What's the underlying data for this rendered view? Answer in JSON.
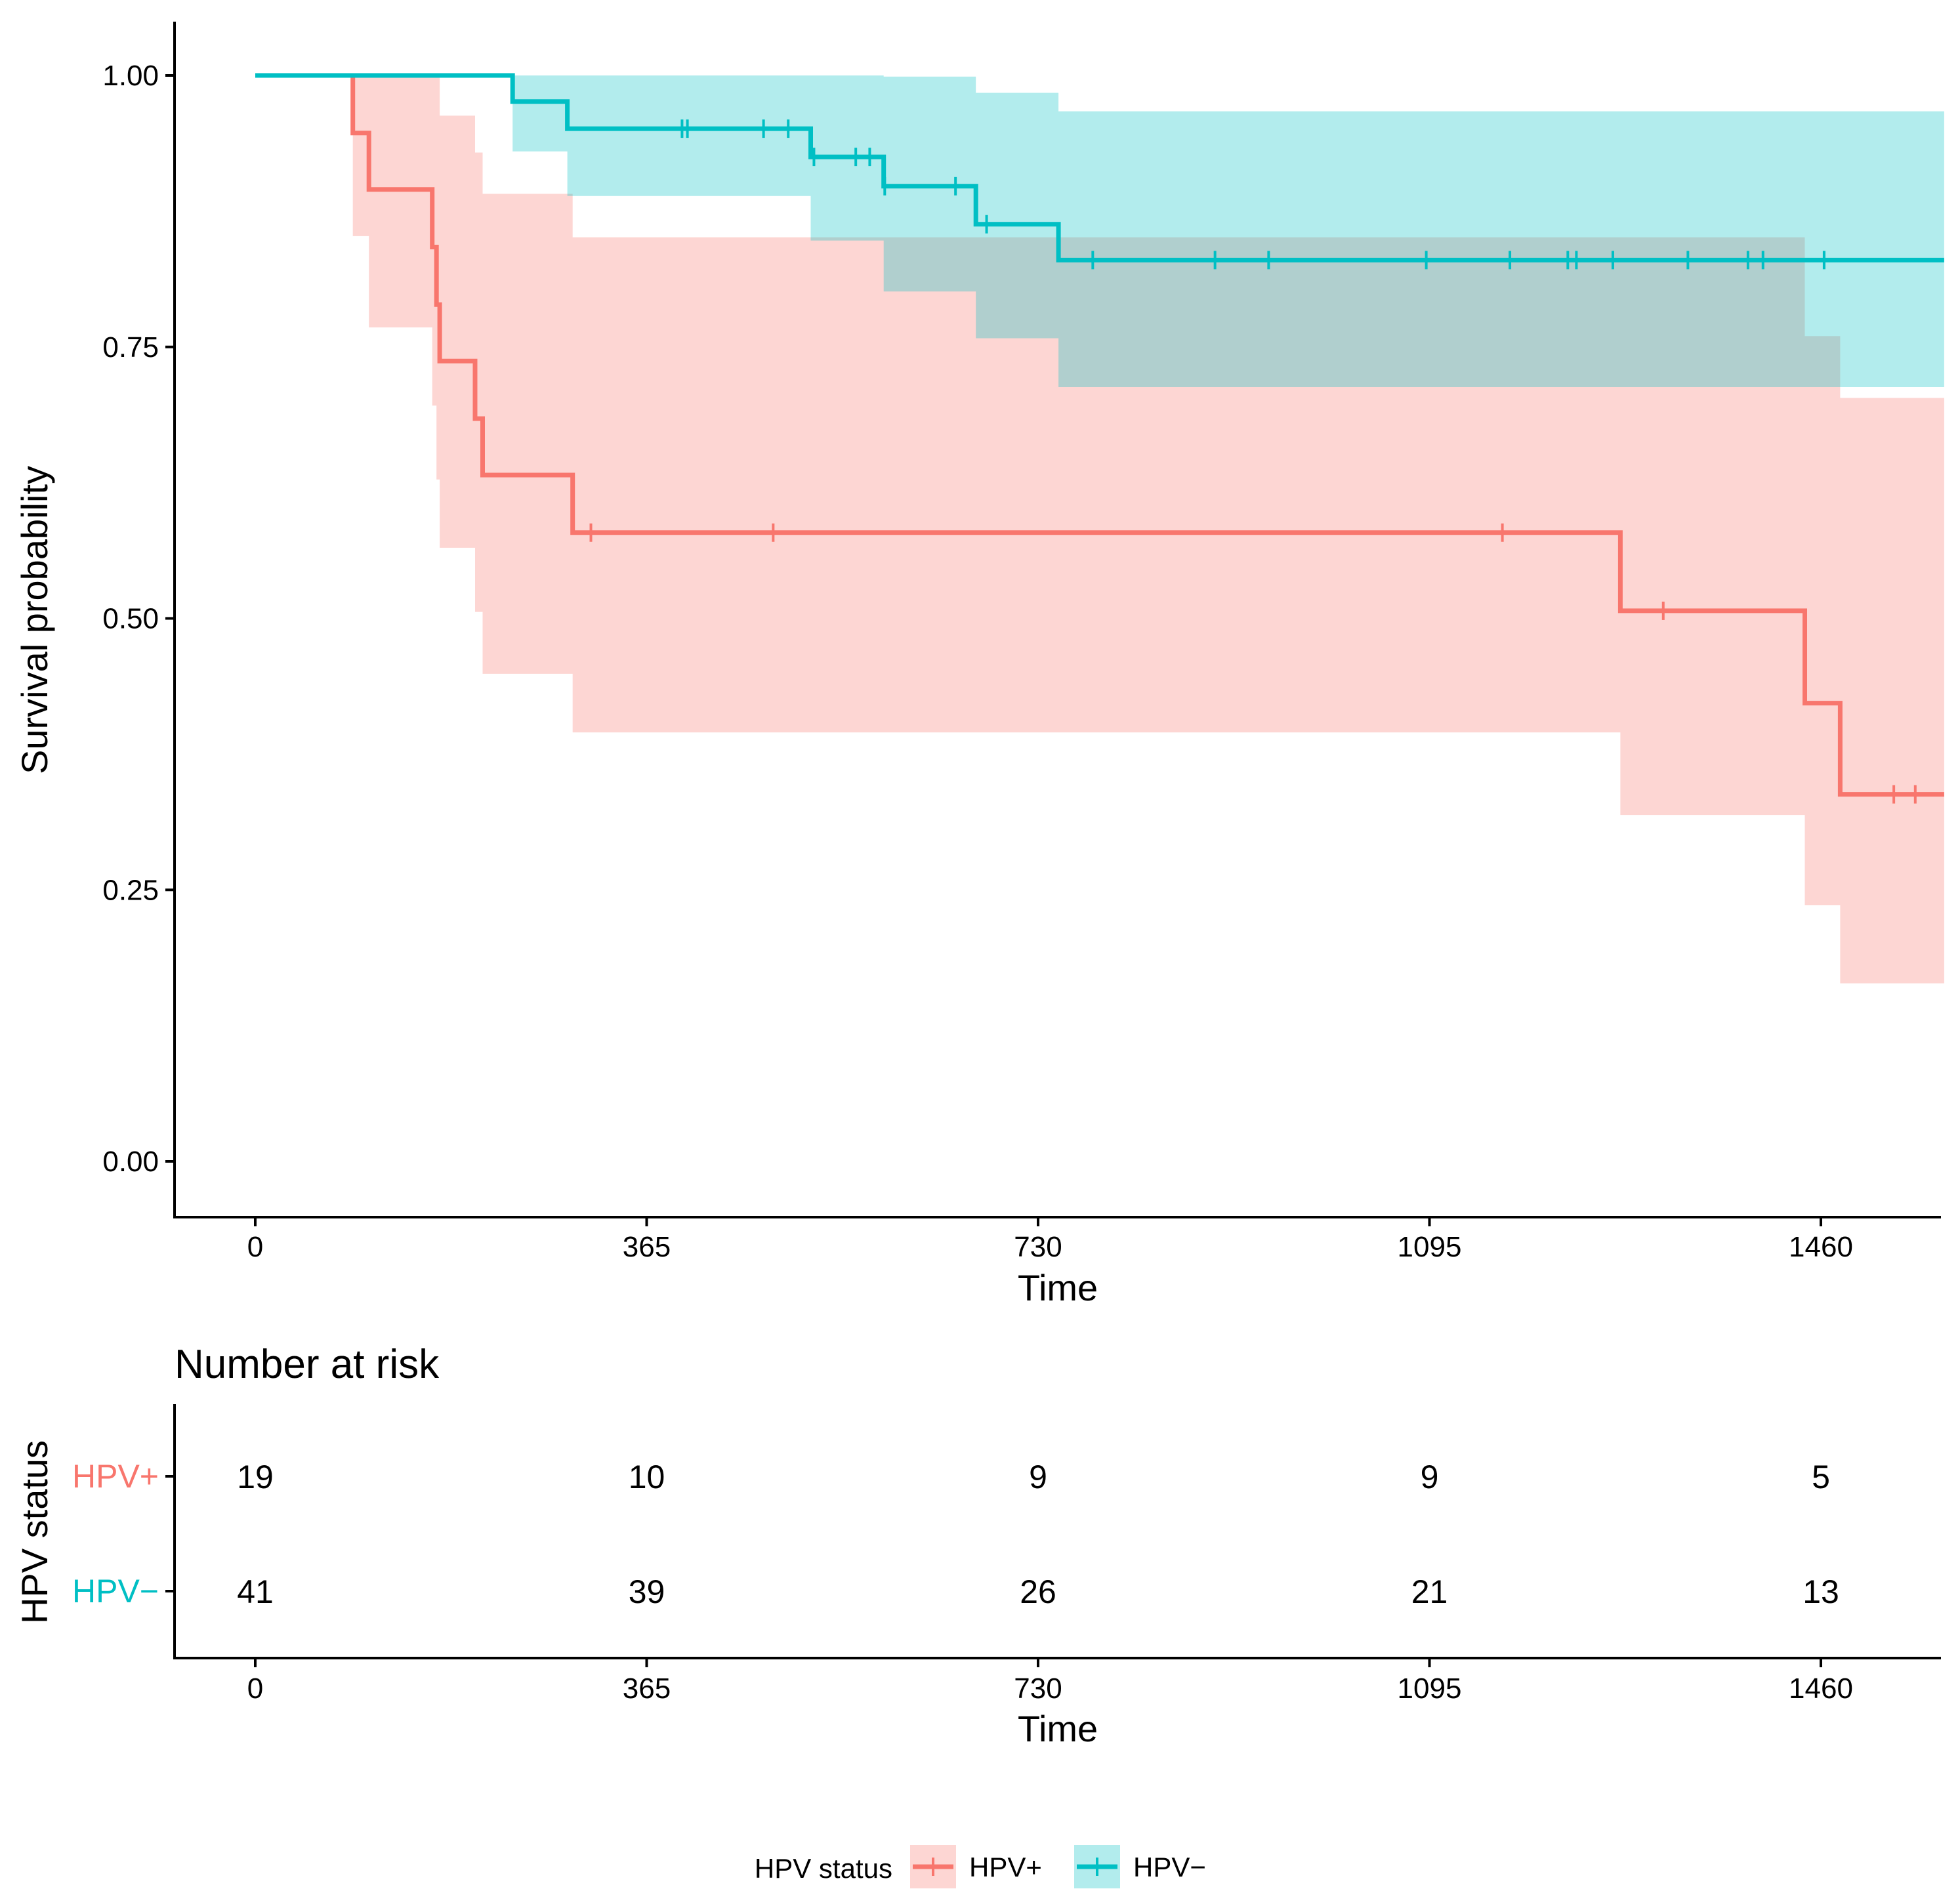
{
  "chart_data": {
    "type": "kaplan-meier",
    "xlabel": "Time",
    "ylabel": "Survival probability",
    "xlim": [
      -125,
      1645
    ],
    "ylim": [
      -0.05,
      1.05
    ],
    "x_ticks": [
      "0",
      "365",
      "730",
      "1095",
      "1460"
    ],
    "x_tick_values": [
      0,
      365,
      730,
      1095,
      1460
    ],
    "y_ticks": [
      "0.00",
      "0.25",
      "0.50",
      "0.75",
      "1.00"
    ],
    "y_tick_values": [
      0,
      0.25,
      0.5,
      0.75,
      1.0
    ],
    "series": [
      {
        "name": "HPV+",
        "color": "#F8766D",
        "band_color": "#F8766D",
        "steps": [
          [
            0,
            1.0
          ],
          [
            91,
            0.947
          ],
          [
            106,
            0.895
          ],
          [
            165,
            0.842
          ],
          [
            169,
            0.789
          ],
          [
            172,
            0.737
          ],
          [
            205,
            0.684
          ],
          [
            212,
            0.632
          ],
          [
            296,
            0.579
          ],
          [
            1273,
            0.507
          ],
          [
            1445,
            0.422
          ],
          [
            1478,
            0.338
          ]
        ],
        "end_time": 1575,
        "lower": [
          [
            0,
            1.0
          ],
          [
            91,
            0.852
          ],
          [
            106,
            0.768
          ],
          [
            165,
            0.696
          ],
          [
            169,
            0.628
          ],
          [
            172,
            0.565
          ],
          [
            205,
            0.506
          ],
          [
            212,
            0.449
          ],
          [
            296,
            0.395
          ],
          [
            1273,
            0.319
          ],
          [
            1445,
            0.236
          ],
          [
            1478,
            0.164
          ]
        ],
        "upper": [
          [
            0,
            1.0
          ],
          [
            91,
            1.0
          ],
          [
            106,
            1.0
          ],
          [
            165,
            1.0
          ],
          [
            169,
            1.0
          ],
          [
            172,
            0.963
          ],
          [
            205,
            0.929
          ],
          [
            212,
            0.891
          ],
          [
            296,
            0.851
          ],
          [
            1273,
            0.851
          ],
          [
            1445,
            0.76
          ],
          [
            1478,
            0.703
          ]
        ],
        "censor_times": [
          313,
          483,
          1163,
          1313,
          1528,
          1548
        ]
      },
      {
        "name": "HPV−",
        "color": "#00BFC4",
        "band_color": "#00BFC4",
        "steps": [
          [
            0,
            1.0
          ],
          [
            240,
            0.976
          ],
          [
            291,
            0.951
          ],
          [
            518,
            0.925
          ],
          [
            586,
            0.898
          ],
          [
            672,
            0.863
          ],
          [
            749,
            0.83
          ]
        ],
        "end_time": 1575,
        "lower": [
          [
            0,
            1.0
          ],
          [
            240,
            0.93
          ],
          [
            291,
            0.889
          ],
          [
            518,
            0.848
          ],
          [
            586,
            0.801
          ],
          [
            672,
            0.758
          ],
          [
            749,
            0.713
          ]
        ],
        "upper": [
          [
            0,
            1.0
          ],
          [
            240,
            1.0
          ],
          [
            291,
            1.0
          ],
          [
            518,
            1.0
          ],
          [
            586,
            0.999
          ],
          [
            672,
            0.984
          ],
          [
            749,
            0.967
          ]
        ],
        "censor_times": [
          398,
          403,
          474,
          497,
          521,
          560,
          573,
          587,
          653,
          682,
          781,
          895,
          945,
          1092,
          1170,
          1224,
          1232,
          1266,
          1336,
          1392,
          1406,
          1463
        ]
      }
    ],
    "risk_table": {
      "title": "Number at risk",
      "ylabel": "HPV status",
      "xlabel": "Time",
      "rows": [
        {
          "label": "HPV+",
          "values": [
            "19",
            "10",
            "9",
            "9",
            "5"
          ]
        },
        {
          "label": "HPV−",
          "values": [
            "41",
            "39",
            "26",
            "21",
            "13"
          ]
        }
      ]
    },
    "legend": {
      "title": "HPV status",
      "position": "bottom",
      "entries": [
        "HPV+",
        "HPV−"
      ]
    }
  }
}
